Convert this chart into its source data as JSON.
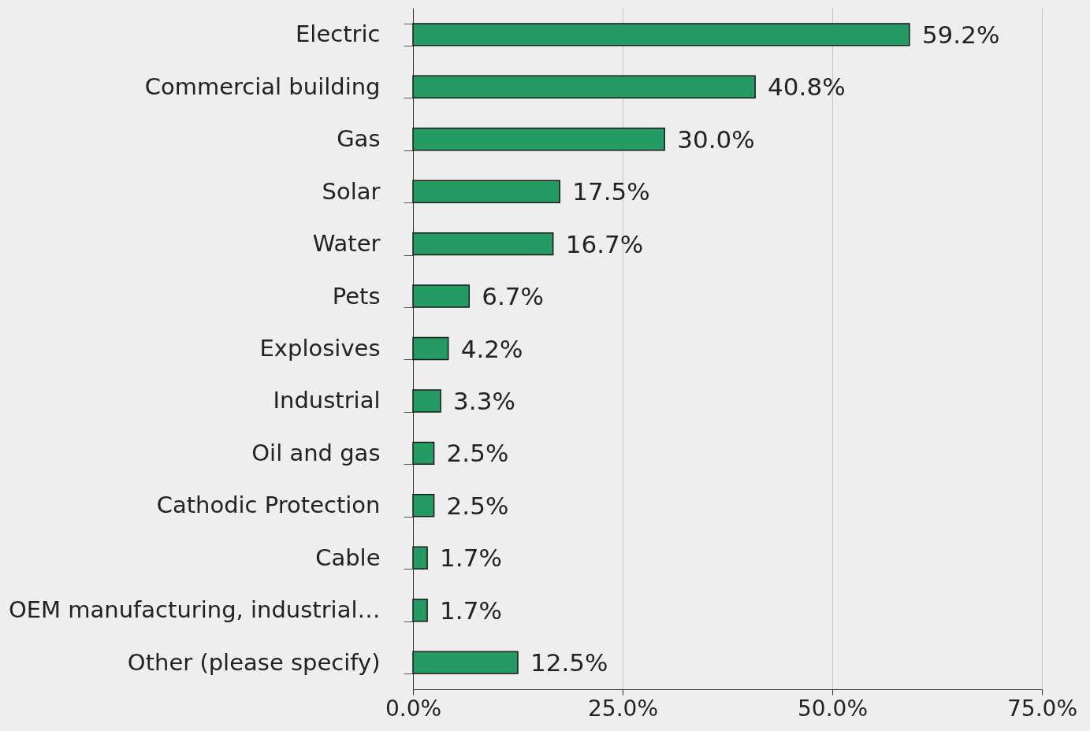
{
  "chart_data": {
    "type": "bar",
    "orientation": "horizontal",
    "categories": [
      "Electric",
      "Commercial building",
      "Gas",
      "Solar",
      "Water",
      "Pets",
      "Explosives",
      "Industrial",
      "Oil and gas",
      "Cathodic Protection",
      "Cable",
      "OEM manufacturing, industrial…",
      "Other (please specify)"
    ],
    "values": [
      59.2,
      40.8,
      30.0,
      17.5,
      16.7,
      6.7,
      4.2,
      3.3,
      2.5,
      2.5,
      1.7,
      1.7,
      12.5
    ],
    "value_labels": [
      "59.2%",
      "40.8%",
      "30.0%",
      "17.5%",
      "16.7%",
      "6.7%",
      "4.2%",
      "3.3%",
      "2.5%",
      "2.5%",
      "1.7%",
      "1.7%",
      "12.5%"
    ],
    "color": "#239b62",
    "xlim": [
      0,
      75
    ],
    "xticks": [
      {
        "value": 0,
        "label": "0.0%"
      },
      {
        "value": 25,
        "label": "25.0%"
      },
      {
        "value": 50,
        "label": "50.0%"
      },
      {
        "value": 75,
        "label": "75.0%"
      }
    ],
    "grid": "x"
  }
}
